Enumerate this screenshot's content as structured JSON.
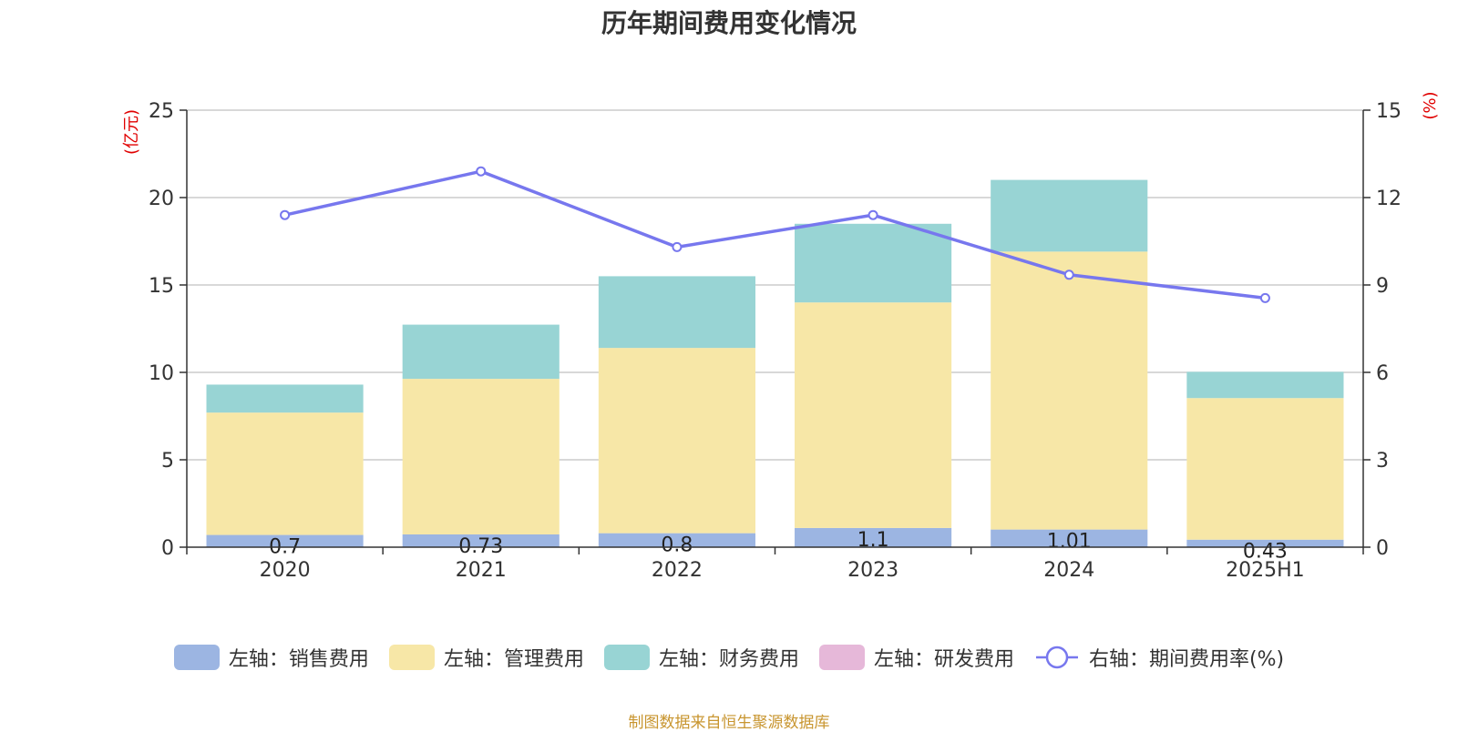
{
  "chart_data": {
    "type": "bar",
    "title": "历年期间费用变化情况",
    "categories": [
      "2020",
      "2021",
      "2022",
      "2023",
      "2024",
      "2025H1"
    ],
    "series": [
      {
        "name": "左轴：销售费用",
        "axis": "left",
        "color": "#9cb5e2",
        "values": [
          0.7,
          0.73,
          0.8,
          1.1,
          1.01,
          0.43
        ],
        "show_labels": true
      },
      {
        "name": "左轴：管理费用",
        "axis": "left",
        "color": "#f7e7a7",
        "values": [
          7.0,
          8.9,
          10.6,
          12.9,
          15.9,
          8.1
        ]
      },
      {
        "name": "左轴：财务费用",
        "axis": "left",
        "color": "#98d4d4",
        "values": [
          1.6,
          3.1,
          4.1,
          4.5,
          4.1,
          1.5
        ]
      },
      {
        "name": "左轴：研发费用",
        "axis": "left",
        "color": "#e6b8d9",
        "values": [
          0,
          0,
          0,
          0,
          0,
          0
        ]
      },
      {
        "name": "右轴：期间费用率(%)",
        "axis": "right",
        "type": "line",
        "color": "#7777ee",
        "values": [
          11.4,
          12.9,
          10.3,
          11.4,
          9.35,
          8.55
        ]
      }
    ],
    "left_axis": {
      "label": "(亿元)",
      "ticks": [
        0,
        5,
        10,
        15,
        20,
        25
      ],
      "ylim": [
        0,
        25
      ]
    },
    "right_axis": {
      "label": "(%)",
      "ticks": [
        0,
        3,
        6,
        9,
        12,
        15
      ],
      "ylim": [
        0,
        15
      ]
    },
    "grid": true,
    "legend_position": "bottom"
  },
  "source_note": "制图数据来自恒生聚源数据库"
}
